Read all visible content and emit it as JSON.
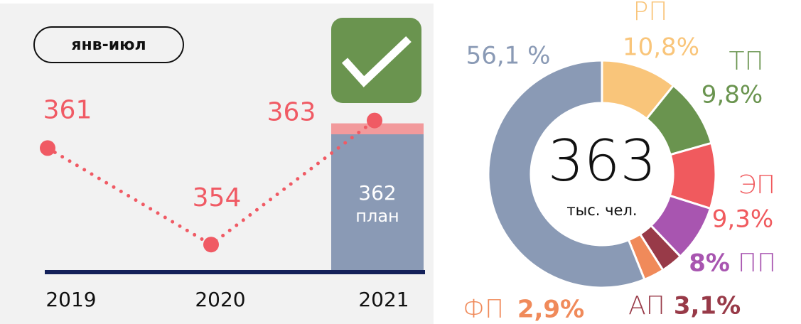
{
  "chart_data": [
    {
      "type": "line",
      "badge": "янв-июл",
      "categories": [
        "2019",
        "2020",
        "2021"
      ],
      "values": [
        361,
        354,
        363
      ],
      "color": "#f05a64",
      "plan": {
        "value": 362,
        "label": "план",
        "color": "#8a9ab5",
        "excess_color": "#f29a9c"
      },
      "ylim": [
        352,
        367
      ]
    },
    {
      "type": "pie",
      "center_value": 363,
      "center_label": "тыс. чел.",
      "categories": [
        "РП",
        "ТП",
        "ЭП",
        "ПП",
        "АП",
        "ФП",
        null
      ],
      "values": [
        10.8,
        9.8,
        9.3,
        8,
        3.1,
        2.9,
        56.1
      ],
      "value_labels": [
        "10,8%",
        "9,8%",
        "9,3%",
        "8%",
        "3,1%",
        "2,9%",
        "56,1 %"
      ],
      "colors": [
        "#f9c57a",
        "#6a944f",
        "#f05a5e",
        "#a855b0",
        "#983a48",
        "#f08a5a",
        "#8a9ab5"
      ]
    }
  ]
}
